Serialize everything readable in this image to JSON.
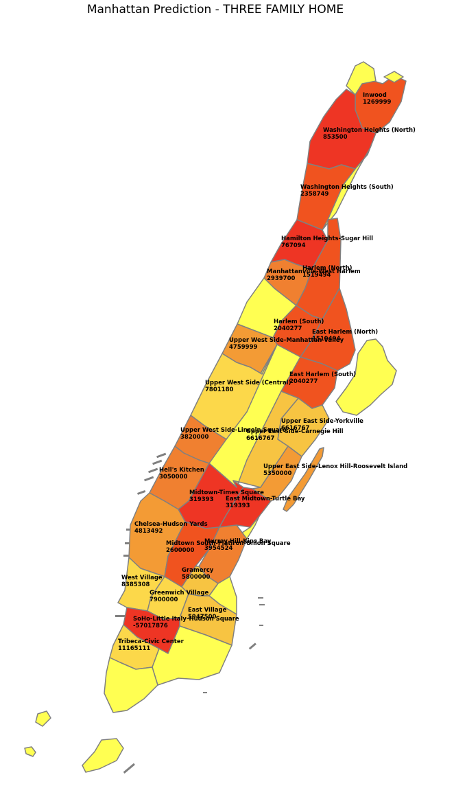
{
  "title": "Manhattan Prediction - THREE FAMILY HOME",
  "colors": {
    "high": "#ee3524",
    "high_mid": "#f0531f",
    "mid": "#f08030",
    "mid_low": "#f39b35",
    "low_mid": "#f7c442",
    "low": "#fcd84a",
    "lowest": "#ffff52",
    "border": "#808080"
  },
  "neighborhoods": [
    {
      "name": "Inwood",
      "value": "1269999",
      "color": "high_mid"
    },
    {
      "name": "Washington Heights (North)",
      "value": "853500",
      "color": "high"
    },
    {
      "name": "Washington Heights (South)",
      "value": "2358749",
      "color": "high_mid"
    },
    {
      "name": "Hamilton Heights-Sugar Hill",
      "value": "767094",
      "color": "high"
    },
    {
      "name": "Harlem (North)",
      "value": "1519494",
      "color": "high_mid"
    },
    {
      "name": "Manhattanville-West Harlem",
      "value": "2939700",
      "color": "mid"
    },
    {
      "name": "Harlem (South)",
      "value": "2040277",
      "color": "high_mid"
    },
    {
      "name": "East Harlem (North)",
      "value": "1519494",
      "color": "high_mid"
    },
    {
      "name": "Upper West Side-Manhattan Valley",
      "value": "4759999",
      "color": "mid_low"
    },
    {
      "name": "East Harlem (South)",
      "value": "2040277",
      "color": "high_mid"
    },
    {
      "name": "Upper West Side (Central)",
      "value": "7801180",
      "color": "low"
    },
    {
      "name": "Upper East Side-Yorkville",
      "value": "6616767",
      "color": "low_mid"
    },
    {
      "name": "Upper West Side-Lincoln Square",
      "value": "3820000",
      "color": "mid"
    },
    {
      "name": "Upper East Side-Carnegie Hill",
      "value": "6616767",
      "color": "low_mid"
    },
    {
      "name": "Upper East Side-Lenox Hill-Roosevelt Island",
      "value": "5350000",
      "color": "mid_low"
    },
    {
      "name": "Hell's Kitchen",
      "value": "3050000",
      "color": "mid"
    },
    {
      "name": "Midtown-Times Square",
      "value": "319393",
      "color": "high"
    },
    {
      "name": "East Midtown-Turtle Bay",
      "value": "319393",
      "color": "high"
    },
    {
      "name": "Chelsea-Hudson Yards",
      "value": "4813492",
      "color": "mid_low"
    },
    {
      "name": "Midtown South-Flatiron-Union Square",
      "value": "2600000",
      "color": "high_mid"
    },
    {
      "name": "Murray Hill-Kips Bay",
      "value": "3954524",
      "color": "mid"
    },
    {
      "name": "Gramercy",
      "value": "5800000",
      "color": "low_mid"
    },
    {
      "name": "West Village",
      "value": "8385308",
      "color": "low"
    },
    {
      "name": "Greenwich Village",
      "value": "7900000",
      "color": "low"
    },
    {
      "name": "East Village",
      "value": "5947500",
      "color": "low_mid"
    },
    {
      "name": "SoHo-Little Italy-Hudson Square",
      "value": "-57017876",
      "color": "high"
    },
    {
      "name": "Tribeca-Civic Center",
      "value": "11165111",
      "color": "low"
    }
  ]
}
